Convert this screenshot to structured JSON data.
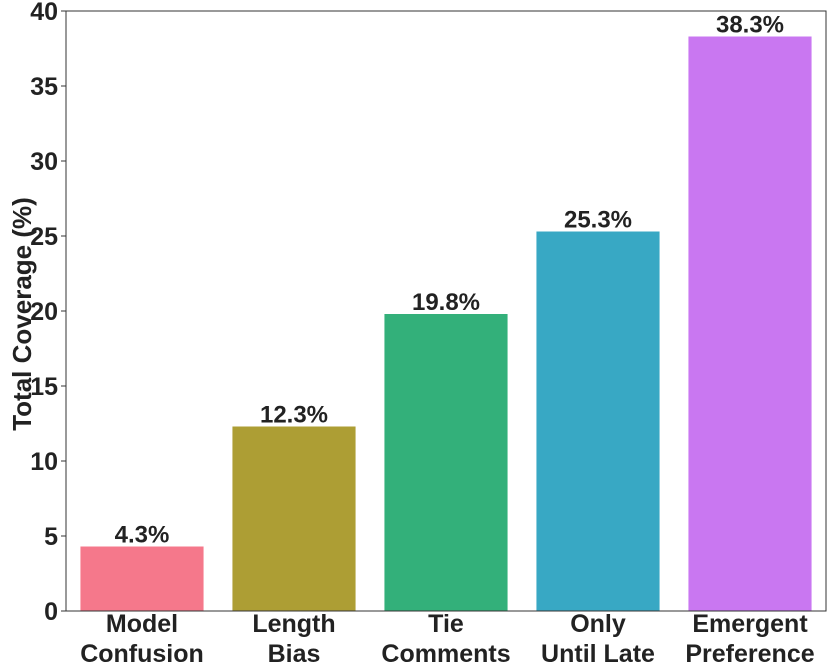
{
  "chart_data": {
    "type": "bar",
    "categories": [
      [
        "Model",
        "Confusion"
      ],
      [
        "Length",
        "Bias"
      ],
      [
        "Tie",
        "Comments"
      ],
      [
        "Only",
        "Until Late"
      ],
      [
        "Emergent",
        "Preference"
      ]
    ],
    "values": [
      4.3,
      12.3,
      19.8,
      25.3,
      38.3
    ],
    "data_labels": [
      "4.3%",
      "12.3%",
      "19.8%",
      "25.3%",
      "38.3%"
    ],
    "colors": [
      "#f5788b",
      "#ad9e34",
      "#33b07a",
      "#38a8c4",
      "#c977f1"
    ],
    "title": "",
    "xlabel": "",
    "ylabel": "Total Coverage (%)",
    "ylim": [
      0,
      40
    ],
    "yticks": [
      0,
      5,
      10,
      15,
      20,
      25,
      30,
      35,
      40
    ],
    "grid": false,
    "legend": "none"
  }
}
